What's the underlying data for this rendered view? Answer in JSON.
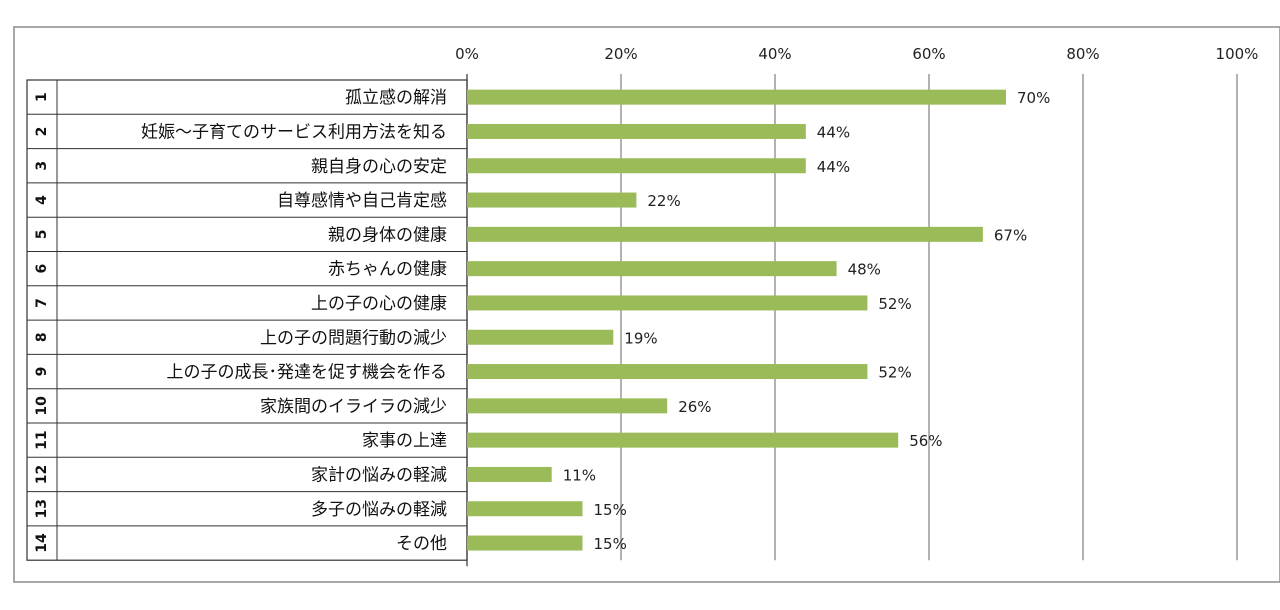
{
  "chart_data": {
    "type": "bar",
    "orientation": "horizontal",
    "numbers": [
      "1",
      "2",
      "3",
      "4",
      "5",
      "6",
      "7",
      "8",
      "9",
      "10",
      "11",
      "12",
      "13",
      "14"
    ],
    "categories": [
      "孤立感の解消",
      "妊娠～子育てのサービス利用方法を知る",
      "親自身の心の安定",
      "自尊感情や自己肯定感",
      "親の身体の健康",
      "赤ちゃんの健康",
      "上の子の心の健康",
      "上の子の問題行動の減少",
      "上の子の成長･発達を促す機会を作る",
      "家族間のイライラの減少",
      "家事の上達",
      "家計の悩みの軽減",
      "多子の悩みの軽減",
      "その他"
    ],
    "values": [
      70,
      44,
      44,
      22,
      67,
      48,
      52,
      19,
      52,
      26,
      56,
      11,
      15,
      15
    ],
    "data_labels": [
      "70%",
      "44%",
      "44%",
      "22%",
      "67%",
      "48%",
      "52%",
      "19%",
      "52%",
      "26%",
      "56%",
      "11%",
      "15%",
      "15%"
    ],
    "xlim": [
      0,
      100
    ],
    "x_ticks": [
      0,
      20,
      40,
      60,
      80,
      100
    ],
    "x_tick_labels": [
      "0%",
      "20%",
      "40%",
      "60%",
      "80%",
      "100%"
    ],
    "x_axis_position": "top",
    "grid": true,
    "bar_color": "#9BBB59",
    "grid_color": "#808080"
  }
}
